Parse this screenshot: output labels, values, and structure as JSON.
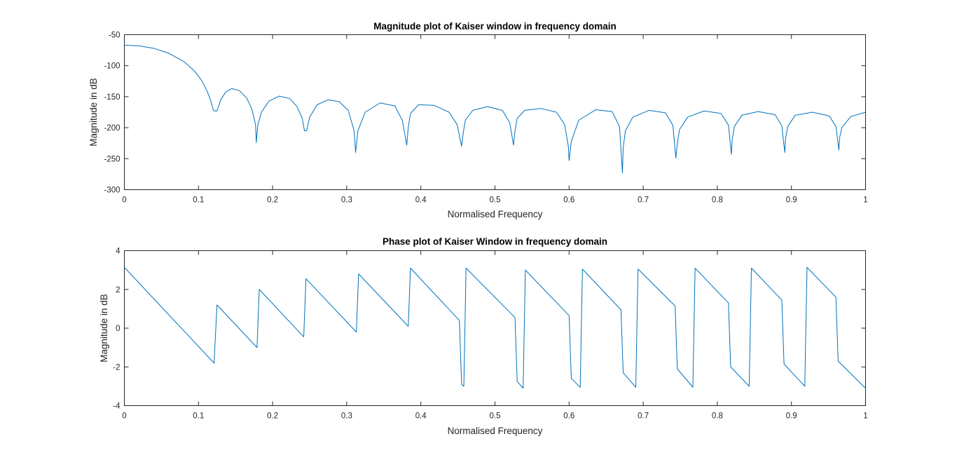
{
  "colors": {
    "line": "#0072BD",
    "axes": "#262626",
    "background": "#ffffff"
  },
  "chart_data": [
    {
      "type": "line",
      "title": "Magnitude plot of Kaiser window in frequency domain",
      "xlabel": "Normalised Frequency",
      "ylabel": "Magnitude in dB",
      "xlim": [
        0,
        1
      ],
      "ylim": [
        -300,
        -50
      ],
      "xticks": [
        0,
        0.1,
        0.2,
        0.3,
        0.4,
        0.5,
        0.6,
        0.7,
        0.8,
        0.9,
        1
      ],
      "xtick_labels": [
        "0",
        "0.1",
        "0.2",
        "0.3",
        "0.4",
        "0.5",
        "0.6",
        "0.7",
        "0.8",
        "0.9",
        "1"
      ],
      "yticks": [
        -300,
        -250,
        -200,
        -150,
        -100,
        -50
      ],
      "ytick_labels": [
        "-300",
        "-250",
        "-200",
        "-150",
        "-100",
        "-50"
      ],
      "grid": false,
      "series": [
        {
          "x": [
            0,
            0.02,
            0.04,
            0.06,
            0.08,
            0.095,
            0.105,
            0.112,
            0.117,
            0.12,
            0.122,
            0.125,
            0.13,
            0.137,
            0.145,
            0.155,
            0.165,
            0.172,
            0.177,
            0.178,
            0.18,
            0.185,
            0.195,
            0.209,
            0.223,
            0.233,
            0.24,
            0.243,
            0.246,
            0.25,
            0.26,
            0.275,
            0.29,
            0.302,
            0.31,
            0.312,
            0.315,
            0.325,
            0.345,
            0.365,
            0.375,
            0.381,
            0.383,
            0.386,
            0.397,
            0.418,
            0.438,
            0.449,
            0.455,
            0.457,
            0.46,
            0.47,
            0.49,
            0.51,
            0.52,
            0.525,
            0.527,
            0.53,
            0.54,
            0.562,
            0.583,
            0.594,
            0.599,
            0.6,
            0.603,
            0.613,
            0.636,
            0.658,
            0.668,
            0.672,
            0.673,
            0.676,
            0.686,
            0.708,
            0.73,
            0.74,
            0.744,
            0.746,
            0.749,
            0.76,
            0.782,
            0.805,
            0.815,
            0.819,
            0.82,
            0.823,
            0.833,
            0.855,
            0.878,
            0.887,
            0.891,
            0.892,
            0.895,
            0.905,
            0.928,
            0.951,
            0.96,
            0.964,
            0.965,
            0.968,
            0.98,
            1.0
          ],
          "y": [
            -67,
            -68,
            -72,
            -80,
            -93,
            -109,
            -125,
            -142,
            -158,
            -172,
            -173,
            -173,
            -155,
            -142,
            -137,
            -140,
            -152,
            -170,
            -195,
            -224,
            -196,
            -175,
            -157,
            -149,
            -153,
            -166,
            -185,
            -205,
            -205,
            -183,
            -163,
            -155,
            -158,
            -172,
            -205,
            -240,
            -205,
            -175,
            -160,
            -165,
            -188,
            -228,
            -200,
            -177,
            -163,
            -164,
            -175,
            -195,
            -230,
            -210,
            -188,
            -172,
            -166,
            -172,
            -192,
            -228,
            -205,
            -185,
            -172,
            -169,
            -175,
            -195,
            -230,
            -253,
            -222,
            -188,
            -171,
            -174,
            -198,
            -273,
            -232,
            -205,
            -183,
            -172,
            -176,
            -196,
            -249,
            -226,
            -203,
            -183,
            -173,
            -177,
            -196,
            -243,
            -220,
            -198,
            -180,
            -174,
            -179,
            -197,
            -240,
            -218,
            -198,
            -180,
            -175,
            -181,
            -198,
            -236,
            -216,
            -200,
            -182,
            -175
          ]
        }
      ]
    },
    {
      "type": "line",
      "title": "Phase plot of Kaiser Window in frequency domain",
      "xlabel": "Normalised Frequency",
      "ylabel": "Magnitude in dB",
      "xlim": [
        0,
        1
      ],
      "ylim": [
        -4,
        4
      ],
      "xticks": [
        0,
        0.1,
        0.2,
        0.3,
        0.4,
        0.5,
        0.6,
        0.7,
        0.8,
        0.9,
        1
      ],
      "xtick_labels": [
        "0",
        "0.1",
        "0.2",
        "0.3",
        "0.4",
        "0.5",
        "0.6",
        "0.7",
        "0.8",
        "0.9",
        "1"
      ],
      "yticks": [
        -4,
        -2,
        0,
        2,
        4
      ],
      "ytick_labels": [
        "-4",
        "-2",
        "0",
        "2",
        "4"
      ],
      "grid": false,
      "series": [
        {
          "x": [
            0,
            0.121,
            0.125,
            0.179,
            0.182,
            0.242,
            0.245,
            0.313,
            0.316,
            0.383,
            0.386,
            0.452,
            0.455,
            0.458,
            0.461,
            0.527,
            0.53,
            0.538,
            0.541,
            0.6,
            0.603,
            0.615,
            0.618,
            0.67,
            0.673,
            0.69,
            0.693,
            0.743,
            0.746,
            0.767,
            0.77,
            0.815,
            0.818,
            0.843,
            0.846,
            0.887,
            0.89,
            0.918,
            0.921,
            0.96,
            0.963,
            1.0
          ],
          "y": [
            3.14,
            -1.8,
            1.2,
            -1.0,
            2.0,
            -0.45,
            2.55,
            -0.2,
            2.8,
            0.1,
            3.1,
            0.4,
            -2.9,
            -3.0,
            3.1,
            0.55,
            -2.75,
            -3.1,
            3.0,
            0.65,
            -2.6,
            -3.05,
            3.05,
            0.95,
            -2.3,
            -3.05,
            3.05,
            1.15,
            -2.1,
            -3.05,
            3.1,
            1.3,
            -2.0,
            -3.0,
            3.1,
            1.45,
            -1.85,
            -3.0,
            3.14,
            1.6,
            -1.7,
            -3.1
          ]
        }
      ]
    }
  ]
}
